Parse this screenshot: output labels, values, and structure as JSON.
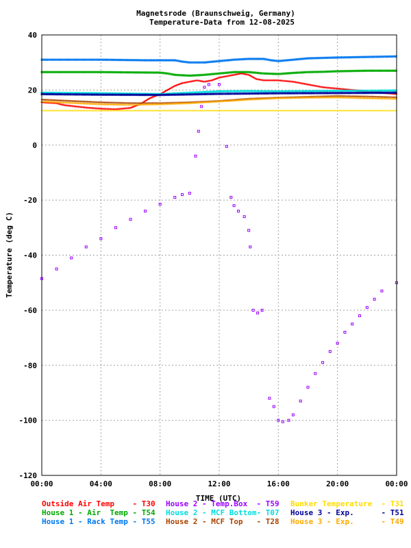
{
  "chart_data": {
    "type": "scatter",
    "title": "Magnetsrode (Braunschweig, Germany)",
    "subtitle": "Temperature-Data from 12-08-2025",
    "xlabel": "TIME (UTC)",
    "ylabel": "Temperature (deg C)",
    "xlim": [
      0,
      24
    ],
    "ylim": [
      -120,
      40
    ],
    "x_ticks": [
      0,
      4,
      8,
      12,
      16,
      20,
      24
    ],
    "x_tick_labels": [
      "00:00",
      "04:00",
      "08:00",
      "12:00",
      "16:00",
      "20:00",
      "00:00"
    ],
    "y_ticks": [
      40,
      20,
      0,
      -20,
      -40,
      -60,
      -80,
      -100,
      -120
    ],
    "y_tick_labels": [
      "40",
      "20",
      "0",
      "-20",
      "-40",
      "-60",
      "-80",
      "-100",
      "-120"
    ],
    "grid": true,
    "legend_position": "bottom",
    "series": [
      {
        "name": "Outside Air Temp",
        "code": "T30",
        "color": "#ff0000",
        "marker": "plus",
        "points": [
          [
            0,
            15.5
          ],
          [
            1,
            15.2
          ],
          [
            1.5,
            14.5
          ],
          [
            2,
            14.2
          ],
          [
            3,
            13.6
          ],
          [
            4,
            13.2
          ],
          [
            5,
            13.0
          ],
          [
            6,
            13.5
          ],
          [
            6.7,
            15.0
          ],
          [
            7.3,
            17.0
          ],
          [
            8,
            18.5
          ],
          [
            8.5,
            20.0
          ],
          [
            9,
            21.5
          ],
          [
            9.5,
            22.5
          ],
          [
            10,
            23.0
          ],
          [
            10.5,
            23.5
          ],
          [
            11,
            23.0
          ],
          [
            11.5,
            23.5
          ],
          [
            12,
            24.5
          ],
          [
            12.5,
            25.0
          ],
          [
            13,
            25.5
          ],
          [
            13.5,
            26.0
          ],
          [
            14,
            25.5
          ],
          [
            14.5,
            24.0
          ],
          [
            15,
            23.5
          ],
          [
            16,
            23.5
          ],
          [
            17,
            23.0
          ],
          [
            18,
            22.0
          ],
          [
            19,
            21.0
          ],
          [
            20,
            20.5
          ],
          [
            21,
            20.0
          ],
          [
            22,
            19.5
          ],
          [
            23,
            19.0
          ],
          [
            24,
            18.5
          ]
        ]
      },
      {
        "name": "House 2 - Temp.Box",
        "code": "T59",
        "color": "#9900ff",
        "marker": "square",
        "points": [
          [
            0,
            -48.5
          ],
          [
            1,
            -45
          ],
          [
            2,
            -41
          ],
          [
            3,
            -37
          ],
          [
            4,
            -34
          ],
          [
            5,
            -30
          ],
          [
            6,
            -27
          ],
          [
            7,
            -24
          ],
          [
            8,
            -21.5
          ],
          [
            9,
            -19
          ],
          [
            9.5,
            -18
          ],
          [
            10,
            -17.5
          ],
          [
            10.4,
            -4
          ],
          [
            10.6,
            5
          ],
          [
            10.8,
            14
          ],
          [
            11,
            21
          ],
          [
            11.3,
            22
          ],
          [
            12,
            22
          ],
          [
            12.5,
            -0.5
          ],
          [
            12.8,
            -19
          ],
          [
            13,
            -22
          ],
          [
            13.3,
            -24
          ],
          [
            13.7,
            -26
          ],
          [
            14,
            -31
          ],
          [
            14.1,
            -37
          ],
          [
            14.3,
            -60
          ],
          [
            14.6,
            -61
          ],
          [
            14.9,
            -60
          ],
          [
            15.4,
            -92
          ],
          [
            15.7,
            -95
          ],
          [
            16,
            -100
          ],
          [
            16.3,
            -100.5
          ],
          [
            16.7,
            -100
          ],
          [
            17,
            -98
          ],
          [
            17.5,
            -93
          ],
          [
            18,
            -88
          ],
          [
            18.5,
            -83
          ],
          [
            19,
            -79
          ],
          [
            19.5,
            -75
          ],
          [
            20,
            -72
          ],
          [
            20.5,
            -68
          ],
          [
            21,
            -65
          ],
          [
            21.5,
            -62
          ],
          [
            22,
            -59
          ],
          [
            22.5,
            -56
          ],
          [
            23,
            -53
          ],
          [
            24,
            -50
          ]
        ]
      },
      {
        "name": "Bunker Temperature",
        "code": "T31",
        "color": "#ffdd00",
        "marker": "dot",
        "points": [
          [
            0,
            12.5
          ],
          [
            4,
            12.5
          ],
          [
            8,
            12.5
          ],
          [
            12,
            12.5
          ],
          [
            16,
            12.5
          ],
          [
            20,
            12.5
          ],
          [
            24,
            12.5
          ]
        ]
      },
      {
        "name": "House 1 - Air  Temp",
        "code": "T54",
        "color": "#00aa00",
        "marker": "cross",
        "points": [
          [
            0,
            26.5
          ],
          [
            4,
            26.5
          ],
          [
            6,
            26.4
          ],
          [
            8,
            26.3
          ],
          [
            8.5,
            26
          ],
          [
            9,
            25.5
          ],
          [
            10,
            25.2
          ],
          [
            11,
            25.5
          ],
          [
            12,
            26.0
          ],
          [
            13,
            26.5
          ],
          [
            14,
            26.5
          ],
          [
            15,
            26.0
          ],
          [
            16,
            25.8
          ],
          [
            17,
            26.2
          ],
          [
            18,
            26.5
          ],
          [
            19,
            26.6
          ],
          [
            20,
            26.8
          ],
          [
            22,
            27.0
          ],
          [
            24,
            27.0
          ]
        ]
      },
      {
        "name": "House 2 - MCF Bottom",
        "code": "T07",
        "color": "#00dddd",
        "marker": "cross",
        "points": [
          [
            0,
            19.0
          ],
          [
            4,
            18.8
          ],
          [
            8,
            18.5
          ],
          [
            10,
            19.0
          ],
          [
            12,
            19.5
          ],
          [
            14,
            19.6
          ],
          [
            16,
            19.5
          ],
          [
            18,
            19.6
          ],
          [
            20,
            19.7
          ],
          [
            22,
            19.7
          ],
          [
            24,
            19.8
          ]
        ]
      },
      {
        "name": "House 3 - Exp.",
        "code": "T51",
        "color": "#000099",
        "marker": "cross",
        "points": [
          [
            0,
            18.5
          ],
          [
            4,
            18.3
          ],
          [
            8,
            18.2
          ],
          [
            12,
            18.6
          ],
          [
            16,
            18.8
          ],
          [
            20,
            18.9
          ],
          [
            24,
            19.0
          ]
        ]
      },
      {
        "name": "House 1 - Rack Temp",
        "code": "T55",
        "color": "#0077ee",
        "marker": "cross",
        "points": [
          [
            0,
            31.0
          ],
          [
            4,
            31.0
          ],
          [
            7,
            30.8
          ],
          [
            8,
            30.8
          ],
          [
            9,
            30.8
          ],
          [
            9.5,
            30.3
          ],
          [
            10,
            30.0
          ],
          [
            11,
            30.0
          ],
          [
            12,
            30.5
          ],
          [
            13,
            31.0
          ],
          [
            14,
            31.3
          ],
          [
            15,
            31.3
          ],
          [
            15.5,
            30.8
          ],
          [
            16,
            30.5
          ],
          [
            17,
            31.0
          ],
          [
            18,
            31.5
          ],
          [
            20,
            31.8
          ],
          [
            22,
            32.0
          ],
          [
            24,
            32.2
          ]
        ]
      },
      {
        "name": "House 2 - MCF Top",
        "code": "T28",
        "color": "#aa4400",
        "marker": "plus",
        "points": [
          [
            0,
            16.5
          ],
          [
            2,
            16.0
          ],
          [
            4,
            15.5
          ],
          [
            6,
            15.2
          ],
          [
            8,
            15.2
          ],
          [
            10,
            15.5
          ],
          [
            12,
            16.0
          ],
          [
            14,
            16.8
          ],
          [
            16,
            17.2
          ],
          [
            18,
            17.5
          ],
          [
            20,
            17.8
          ],
          [
            22,
            17.6
          ],
          [
            24,
            17.3
          ]
        ]
      },
      {
        "name": "House 3 - Exp.",
        "code": "T49",
        "color": "#ffaa00",
        "marker": "plus",
        "points": [
          [
            0,
            15.8
          ],
          [
            2,
            15.3
          ],
          [
            4,
            14.8
          ],
          [
            6,
            14.6
          ],
          [
            8,
            14.8
          ],
          [
            10,
            15.2
          ],
          [
            12,
            15.8
          ],
          [
            14,
            16.5
          ],
          [
            16,
            17.0
          ],
          [
            18,
            17.2
          ],
          [
            20,
            17.3
          ],
          [
            22,
            17.0
          ],
          [
            24,
            16.8
          ]
        ]
      }
    ]
  },
  "legend": {
    "col1": [
      {
        "label": "Outside Air Temp    - T30",
        "color": "#ff0000"
      },
      {
        "label": "House 1 - Air  Temp - T54",
        "color": "#00aa00"
      },
      {
        "label": "House 1 - Rack Temp - T55",
        "color": "#0077ee"
      }
    ],
    "col2": [
      {
        "label": "House 2 - Temp.Box  - T59",
        "color": "#9900ff"
      },
      {
        "label": "House 2 - MCF Bottom- T07",
        "color": "#00dddd"
      },
      {
        "label": "House 2 - MCF Top   - T28",
        "color": "#aa4400"
      }
    ],
    "col3": [
      {
        "label": "Bunker Temperature  - T31",
        "color": "#ffdd00"
      },
      {
        "label": "House 3 - Exp.      - T51",
        "color": "#000099"
      },
      {
        "label": "House 3 - Exp.      - T49",
        "color": "#ffaa00"
      }
    ]
  }
}
